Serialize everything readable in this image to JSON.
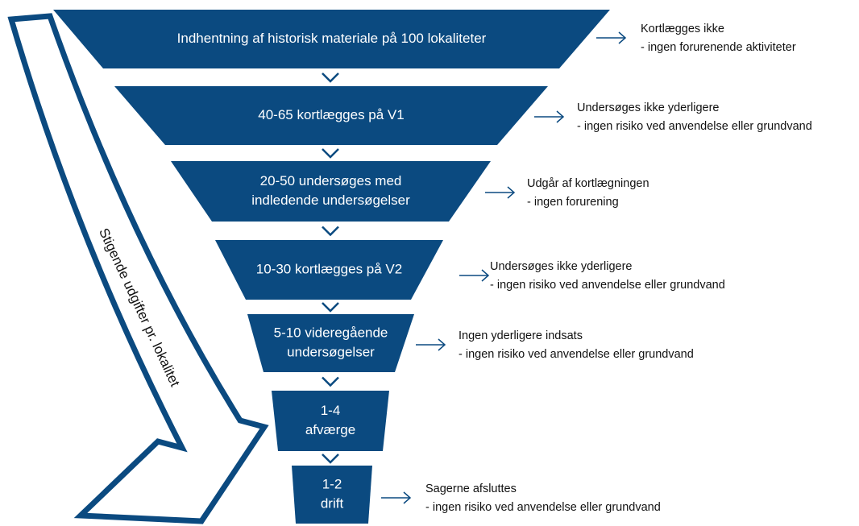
{
  "stages": [
    {
      "lines": [
        "Indhentning af historisk materiale på 100 lokaliteter"
      ]
    },
    {
      "lines": [
        "40-65 kortlægges på V1"
      ]
    },
    {
      "lines": [
        "20-50 undersøges med",
        "indledende undersøgelser"
      ]
    },
    {
      "lines": [
        "10-30 kortlægges på V2"
      ]
    },
    {
      "lines": [
        "5-10 videregående",
        "undersøgelser"
      ]
    },
    {
      "lines": [
        "1-4",
        "afværge"
      ]
    },
    {
      "lines": [
        "1-2",
        "drift"
      ]
    }
  ],
  "notes": [
    {
      "lines": [
        "Kortlægges ikke",
        "- ingen forurenende aktiviteter"
      ]
    },
    {
      "lines": [
        "Undersøges ikke yderligere",
        "- ingen risiko ved anvendelse eller grundvand"
      ]
    },
    {
      "lines": [
        "Udgår af kortlægningen",
        "- ingen forurening"
      ]
    },
    {
      "lines": [
        "Undersøges ikke yderligere",
        "- ingen risiko ved anvendelse eller grundvand"
      ]
    },
    {
      "lines": [
        "Ingen yderligere indsats",
        "- ingen risiko ved anvendelse eller grundvand"
      ]
    },
    {
      "lines": [
        "Sagerne afsluttes",
        "- ingen risiko ved anvendelse eller grundvand"
      ]
    }
  ],
  "arrow_label": "Stigende udgifter pr. lokalitet"
}
